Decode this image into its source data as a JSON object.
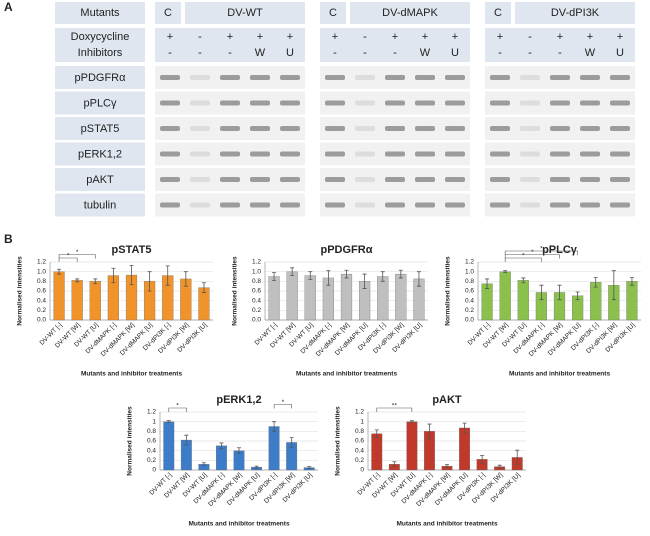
{
  "panel_labels": [
    "A",
    "B"
  ],
  "blot": {
    "mutants_label": "Mutants",
    "groups": [
      {
        "control": "C",
        "name": "DV-WT"
      },
      {
        "control": "C",
        "name": "DV-dMAPK"
      },
      {
        "control": "C",
        "name": "DV-dPI3K"
      }
    ],
    "doxycycline_label": "Doxycycline",
    "inhibitors_label": "Inhibitors",
    "doxycycline": [
      "+",
      "-",
      "+",
      "+",
      "+"
    ],
    "inhibitors": [
      "-",
      "-",
      "-",
      "W",
      "U"
    ],
    "rows": [
      "pPDGFRα",
      "pPLCγ",
      "pSTAT5",
      "pERK1,2",
      "pAKT",
      "tubulin"
    ]
  },
  "chart_data": [
    {
      "type": "bar",
      "title": "pSTAT5",
      "ylabel": "Normalised intensities",
      "xlabel": "Mutants and inhibitor treatments",
      "categories": [
        "DV-WT [-]",
        "DV-WT [W]",
        "DV-WT [U]",
        "DV-dMAPK [-]",
        "DV-dMAPK [W]",
        "DV-dMAPK [U]",
        "DV-dPI3K [-]",
        "DV-dPI3K [W]",
        "DV-dPI3K [U]"
      ],
      "values": [
        1.0,
        0.82,
        0.8,
        0.92,
        0.93,
        0.8,
        0.92,
        0.85,
        0.67
      ],
      "errors": [
        0.05,
        0.03,
        0.05,
        0.15,
        0.2,
        0.2,
        0.2,
        0.15,
        0.1
      ],
      "color": "#f0932b",
      "ylim": [
        0,
        1.2
      ],
      "yticks": [
        {
          "value": 0,
          "label": "0.0"
        },
        0.2,
        0.4,
        0.6,
        0.8,
        {
          "value": 1,
          "label": "1.0"
        },
        1.2
      ],
      "grid": true,
      "annotations": [
        {
          "text": "*",
          "between": [
            0,
            1
          ]
        },
        {
          "text": "*",
          "between": [
            0,
            2
          ]
        }
      ]
    },
    {
      "type": "bar",
      "title": "pPDGFRα",
      "ylabel": "Normalised intensities",
      "xlabel": "Mutants and inhibitor treatments",
      "categories": [
        "DV-WT [-]",
        "DV-WT [W]",
        "DV-WT [U]",
        "DV-dMAPK [-]",
        "DV-dMAPK [W]",
        "DV-dMAPK [U]",
        "DV-dPI3K [-]",
        "DV-dPI3K [W]",
        "DV-dPI3K [U]"
      ],
      "values": [
        0.9,
        1.0,
        0.92,
        0.87,
        0.95,
        0.8,
        0.9,
        0.95,
        0.85
      ],
      "errors": [
        0.08,
        0.08,
        0.08,
        0.15,
        0.08,
        0.15,
        0.1,
        0.08,
        0.15
      ],
      "color": "#bfbfbf",
      "ylim": [
        0,
        1.2
      ],
      "yticks": [
        {
          "value": 0,
          "label": "0.0"
        },
        0.2,
        0.4,
        0.6,
        0.8,
        {
          "value": 1,
          "label": "1.0"
        },
        1.2
      ],
      "grid": true
    },
    {
      "type": "bar",
      "title": "pPLCγ",
      "ylabel": "Normalised intensities",
      "xlabel": "Mutants and inhibitor treatments",
      "categories": [
        "DV-WT [-]",
        "DV-WT [W]",
        "DV-WT [U]",
        "DV-dMAPK [-]",
        "DV-dMAPK [W]",
        "DV-dMAPK [U]",
        "DV-dPI3K [-]",
        "DV-dPI3K [W]",
        "DV-dPI3K [U]"
      ],
      "values": [
        0.75,
        1.0,
        0.82,
        0.57,
        0.57,
        0.5,
        0.78,
        0.72,
        0.8
      ],
      "errors": [
        0.1,
        0.02,
        0.05,
        0.15,
        0.15,
        0.08,
        0.1,
        0.3,
        0.08
      ],
      "color": "#8cc04c",
      "ylim": [
        0,
        1.2
      ],
      "yticks": [
        {
          "value": 0,
          "label": "0.0"
        },
        0.2,
        0.4,
        0.6,
        0.8,
        {
          "value": 1,
          "label": "1.0"
        },
        1.2
      ],
      "grid": true,
      "annotations": [
        {
          "text": "*",
          "between": [
            1,
            3
          ]
        },
        {
          "text": "*",
          "between": [
            1,
            4
          ]
        },
        {
          "text": "*",
          "between": [
            1,
            5
          ]
        }
      ]
    },
    {
      "type": "bar",
      "title": "pERK1,2",
      "ylabel": "Normalised intensities",
      "xlabel": "Mutants and inhibitor treatments",
      "categories": [
        "DV-WT [-]",
        "DV-WT [W]",
        "DV-WT [U]",
        "DV-dMAPK [-]",
        "DV-dMAPK [W]",
        "DV-dMAPK [U]",
        "DV-dPI3K [-]",
        "DV-dPI3K [W]",
        "DV-dPI3K [U]"
      ],
      "values": [
        1.0,
        0.62,
        0.12,
        0.5,
        0.4,
        0.06,
        0.9,
        0.57,
        0.05
      ],
      "errors": [
        0.02,
        0.1,
        0.03,
        0.06,
        0.06,
        0.02,
        0.1,
        0.1,
        0.02
      ],
      "color": "#3d7cc9",
      "ylim": [
        0,
        1.2
      ],
      "yticks": [
        0,
        0.2,
        0.4,
        0.6,
        0.8,
        1,
        1.2
      ],
      "grid": true,
      "annotations": [
        {
          "text": "*",
          "between": [
            0,
            1
          ]
        },
        {
          "text": "*",
          "between": [
            6,
            7
          ]
        }
      ]
    },
    {
      "type": "bar",
      "title": "pAKT",
      "ylabel": "Normalised intensities",
      "xlabel": "Mutants and inhibitor treatments",
      "categories": [
        "DV-WT [-]",
        "DV-WT [W]",
        "DV-WT [U]",
        "DV-dMAPK [-]",
        "DV-dMAPK [W]",
        "DV-dMAPK [U]",
        "DV-dPI3K [-]",
        "DV-dPI3K [W]",
        "DV-dPI3K [U]"
      ],
      "values": [
        0.75,
        0.12,
        1.0,
        0.8,
        0.08,
        0.87,
        0.22,
        0.07,
        0.26
      ],
      "errors": [
        0.08,
        0.05,
        0.02,
        0.15,
        0.03,
        0.1,
        0.08,
        0.03,
        0.15
      ],
      "color": "#c0392b",
      "ylim": [
        0,
        1.2
      ],
      "yticks": [
        0,
        0.2,
        0.4,
        0.6,
        0.8,
        1,
        1.2
      ],
      "grid": true,
      "annotations": [
        {
          "text": "**",
          "between": [
            0,
            2
          ]
        }
      ]
    }
  ]
}
